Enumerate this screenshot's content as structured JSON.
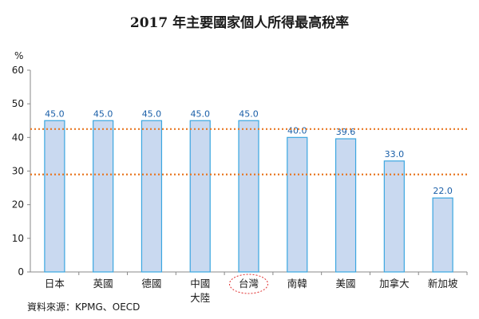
{
  "chart_data": {
    "type": "bar",
    "title": "2017 年主要國家個人所得最高稅率",
    "ylabel": "%",
    "ylim": [
      0,
      60
    ],
    "yticks": [
      0,
      10,
      20,
      30,
      40,
      50,
      60
    ],
    "categories": [
      [
        "日本"
      ],
      [
        "英國"
      ],
      [
        "德國"
      ],
      [
        "中國",
        "大陸"
      ],
      [
        "台灣"
      ],
      [
        "南韓"
      ],
      [
        "美國"
      ],
      [
        "加拿大"
      ],
      [
        "新加坡"
      ]
    ],
    "values": [
      45.0,
      45.0,
      45.0,
      45.0,
      45.0,
      40.0,
      39.6,
      33.0,
      22.0
    ],
    "data_labels": [
      "45.0",
      "45.0",
      "45.0",
      "45.0",
      "45.0",
      "40.0",
      "39.6",
      "33.0",
      "22.0"
    ],
    "reference_lines": [
      42.5,
      29.0
    ],
    "highlight_category": "台灣",
    "grid": false,
    "legend": "none",
    "source": "資料來源：KPMG、OECD",
    "colors": {
      "bar_fill": "#c9d9f0",
      "bar_stroke": "#3aa6e0",
      "ref_line": "#e87722",
      "highlight_circle": "#e03030",
      "data_label": "#1a5fa8",
      "axis": "#888888"
    }
  }
}
